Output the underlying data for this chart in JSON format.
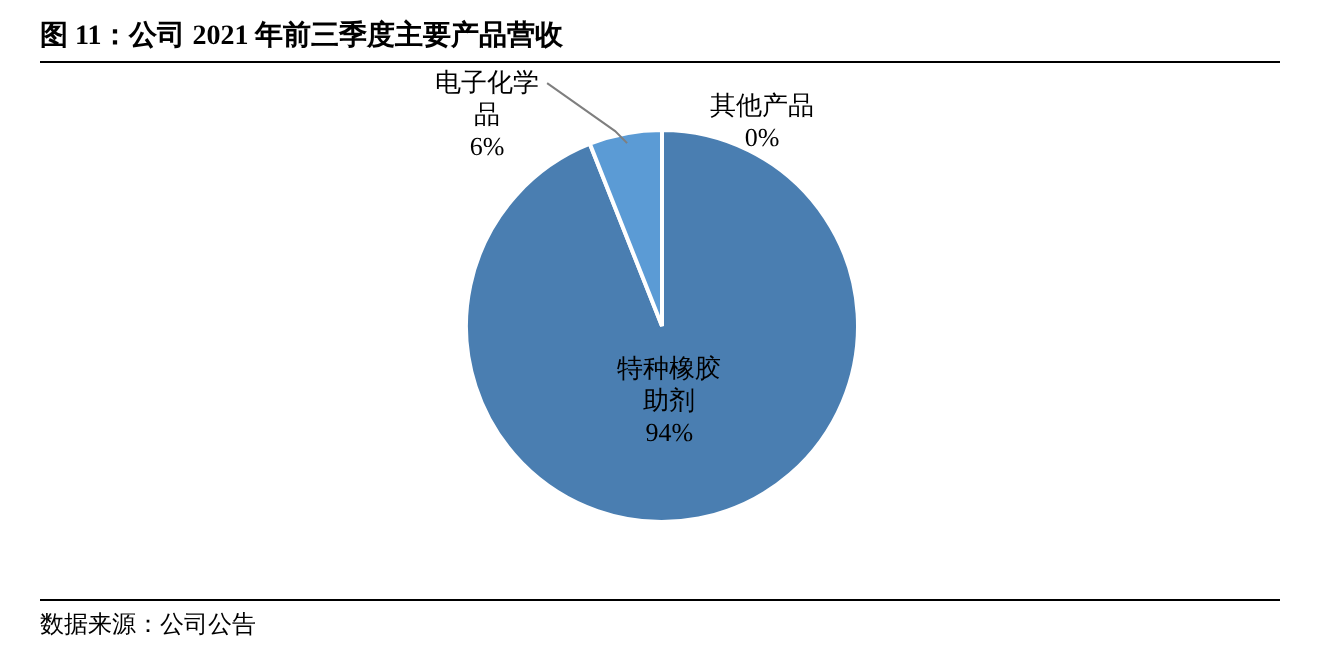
{
  "chart_data": {
    "type": "pie",
    "title": "图 11：公司 2021 年前三季度主要产品营收",
    "categories": [
      "特种橡胶助剂",
      "电子化学品",
      "其他产品"
    ],
    "values": [
      94,
      6,
      0
    ],
    "colors": [
      "#4a7eb1",
      "#5b9bd5",
      "#a5a5a5"
    ],
    "value_labels": [
      "94%",
      "6%",
      "0%"
    ],
    "annotations": [
      "数据来源：公司公告"
    ]
  }
}
